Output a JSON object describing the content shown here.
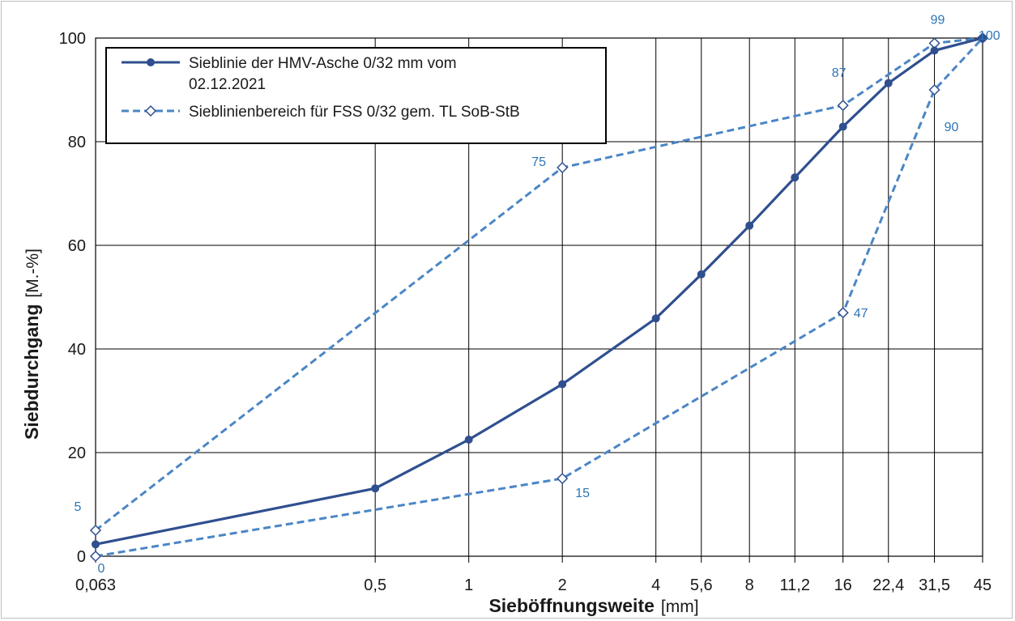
{
  "colors": {
    "series_main": "#2f4f8f",
    "series_band": "#4a86c5",
    "labels": "#2e75b6",
    "grid": "#000000"
  },
  "chart_data": {
    "type": "line",
    "xlabel_bold": "Sieböffnungsweite",
    "xlabel_unit": "[mm]",
    "ylabel_bold": "Siebdurchgang",
    "ylabel_unit": "[M.-%]",
    "x_scale": "log",
    "xticks": [
      "0,063",
      "0,5",
      "1",
      "2",
      "4",
      "5,6",
      "8",
      "11,2",
      "16",
      "22,4",
      "31,5",
      "45"
    ],
    "x_values": [
      0.063,
      0.5,
      1,
      2,
      4,
      5.6,
      8,
      11.2,
      16,
      22.4,
      31.5,
      45
    ],
    "yticks": [
      "0",
      "20",
      "40",
      "60",
      "80",
      "100"
    ],
    "ylim": [
      0,
      100
    ],
    "grid": true,
    "legend_position": "top-left",
    "series": [
      {
        "name_line1": "Sieblinie der HMV-Asche 0/32 mm vom",
        "name_line2": "02.12.2021",
        "marker": "filled-circle",
        "style": "solid",
        "points": [
          [
            0.063,
            2.3
          ],
          [
            0.5,
            13.1
          ],
          [
            1,
            22.5
          ],
          [
            2,
            33.2
          ],
          [
            4,
            45.9
          ],
          [
            5.6,
            54.4
          ],
          [
            8,
            63.8
          ],
          [
            11.2,
            73.1
          ],
          [
            16,
            82.9
          ],
          [
            22.4,
            91.3
          ],
          [
            31.5,
            97.6
          ],
          [
            45,
            100
          ]
        ]
      },
      {
        "name": "Sieblinienbereich für FSS 0/32 gem. TL SoB-StB",
        "marker": "open-diamond",
        "style": "dashed",
        "upper": [
          [
            0.063,
            5
          ],
          [
            2,
            75
          ],
          [
            16,
            87
          ],
          [
            31.5,
            99
          ],
          [
            45,
            100
          ]
        ],
        "lower": [
          [
            0.063,
            0
          ],
          [
            2,
            15
          ],
          [
            16,
            47
          ],
          [
            31.5,
            90
          ],
          [
            45,
            100
          ]
        ],
        "labels": [
          "5",
          "75",
          "87",
          "99",
          "100",
          "0",
          "15",
          "47",
          "90"
        ]
      }
    ]
  }
}
